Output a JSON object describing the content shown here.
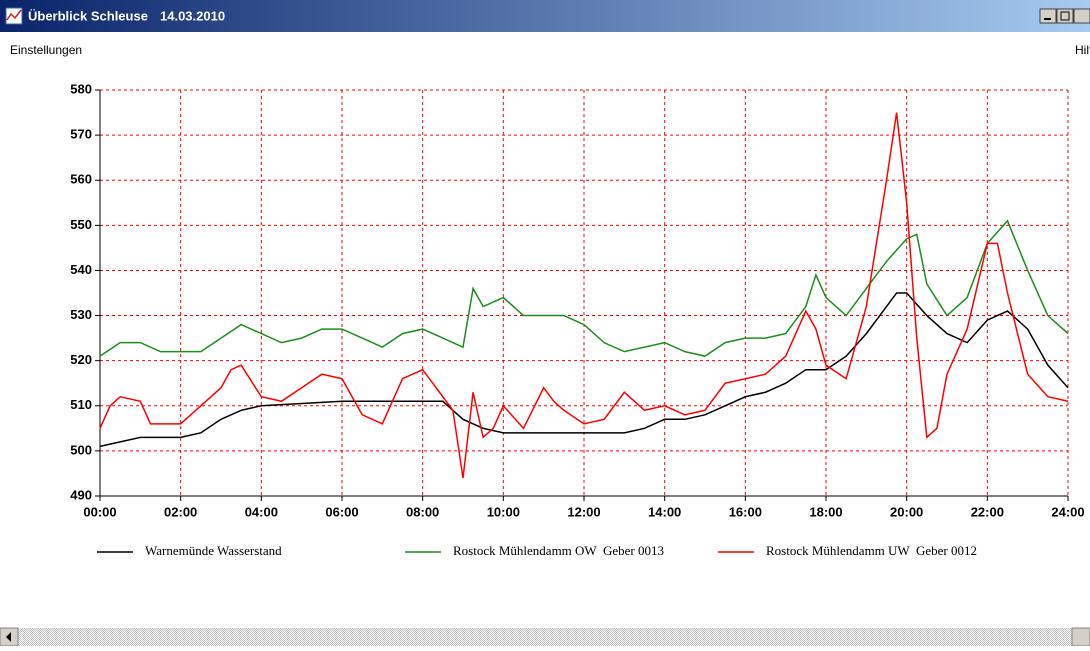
{
  "window": {
    "title": "Überblick Schleuse",
    "date": "14.03.2010",
    "menu": [
      "Einstellungen",
      "Hilfe"
    ]
  },
  "chart_data": {
    "type": "line",
    "xlim": [
      0,
      24
    ],
    "xticks": [
      {
        "value": 0,
        "label": "00:00"
      },
      {
        "value": 2,
        "label": "02:00"
      },
      {
        "value": 4,
        "label": "04:00"
      },
      {
        "value": 6,
        "label": "06:00"
      },
      {
        "value": 8,
        "label": "08:00"
      },
      {
        "value": 10,
        "label": "10:00"
      },
      {
        "value": 12,
        "label": "12:00"
      },
      {
        "value": 14,
        "label": "14:00"
      },
      {
        "value": 16,
        "label": "16:00"
      },
      {
        "value": 18,
        "label": "18:00"
      },
      {
        "value": 20,
        "label": "20:00"
      },
      {
        "value": 22,
        "label": "22:00"
      },
      {
        "value": 24,
        "label": "24:00"
      }
    ],
    "ylim": [
      490,
      580
    ],
    "yticks": [
      490,
      500,
      510,
      520,
      530,
      540,
      550,
      560,
      570,
      580
    ],
    "grid": true,
    "grid_color": "#ff0000",
    "series": [
      {
        "name": "Warnemünde Wasserstand",
        "color": "#000000",
        "x": [
          0,
          0.5,
          1,
          2,
          2.5,
          3,
          3.5,
          4,
          6,
          8.5,
          9,
          9.5,
          10,
          13,
          13.5,
          14,
          14.5,
          15,
          15.5,
          16,
          16.5,
          17,
          17.5,
          18,
          18.5,
          19,
          19.5,
          19.75,
          20,
          20.5,
          21,
          21.5,
          22,
          22.5,
          23,
          23.5,
          24
        ],
        "values": [
          501,
          502,
          503,
          503,
          504,
          507,
          509,
          510,
          511,
          511,
          507,
          505,
          504,
          504,
          505,
          507,
          507,
          508,
          510,
          512,
          513,
          515,
          518,
          518,
          521,
          526,
          532,
          535,
          535,
          530,
          526,
          524,
          529,
          531,
          527,
          519,
          514
        ]
      },
      {
        "name": "Rostock Mühlendamm OW  Geber 0013",
        "color": "#1e8c1e",
        "x": [
          0,
          0.5,
          1,
          1.5,
          2,
          2.5,
          3,
          3.5,
          4,
          4.5,
          5,
          5.5,
          6,
          6.5,
          7,
          7.5,
          8,
          8.5,
          9,
          9.25,
          9.5,
          10,
          10.5,
          11,
          11.5,
          12,
          12.5,
          13,
          13.5,
          14,
          14.5,
          15,
          15.5,
          16,
          16.5,
          17,
          17.5,
          17.75,
          18,
          18.5,
          19,
          19.5,
          20,
          20.25,
          20.5,
          21,
          21.5,
          22,
          22.5,
          23,
          23.5,
          24
        ],
        "values": [
          521,
          524,
          524,
          522,
          522,
          522,
          525,
          528,
          526,
          524,
          525,
          527,
          527,
          525,
          523,
          526,
          527,
          525,
          523,
          536,
          532,
          534,
          530,
          530,
          530,
          528,
          524,
          522,
          523,
          524,
          522,
          521,
          524,
          525,
          525,
          526,
          532,
          539,
          534,
          530,
          536,
          542,
          547,
          548,
          537,
          530,
          534,
          546,
          551,
          540,
          530,
          526
        ]
      },
      {
        "name": "Rostock Mühlendamm UW  Geber 0012",
        "color": "#ff0000",
        "x": [
          0,
          0.25,
          0.5,
          1,
          1.25,
          2,
          2.5,
          3,
          3.25,
          3.5,
          4,
          4.5,
          5,
          5.5,
          6,
          6.5,
          7,
          7.5,
          8,
          8.5,
          8.75,
          9,
          9.25,
          9.5,
          9.75,
          10,
          10.5,
          11,
          11.25,
          11.5,
          12,
          12.5,
          13,
          13.5,
          14,
          14.5,
          15,
          15.5,
          16,
          16.5,
          17,
          17.5,
          17.75,
          18,
          18.5,
          19,
          19.5,
          19.75,
          20,
          20.25,
          20.5,
          20.75,
          21,
          21.5,
          22,
          22.25,
          22.5,
          23,
          23.5,
          24
        ],
        "values": [
          505,
          510,
          512,
          511,
          506,
          506,
          510,
          514,
          518,
          519,
          512,
          511,
          514,
          517,
          516,
          508,
          506,
          516,
          518,
          512,
          509,
          494,
          513,
          503,
          505,
          510,
          505,
          514,
          511,
          509,
          506,
          507,
          513,
          509,
          510,
          508,
          509,
          515,
          516,
          517,
          521,
          531,
          527,
          519,
          516,
          532,
          560,
          575,
          555,
          525,
          503,
          505,
          517,
          527,
          546,
          546,
          535,
          517,
          512,
          511
        ]
      }
    ]
  }
}
